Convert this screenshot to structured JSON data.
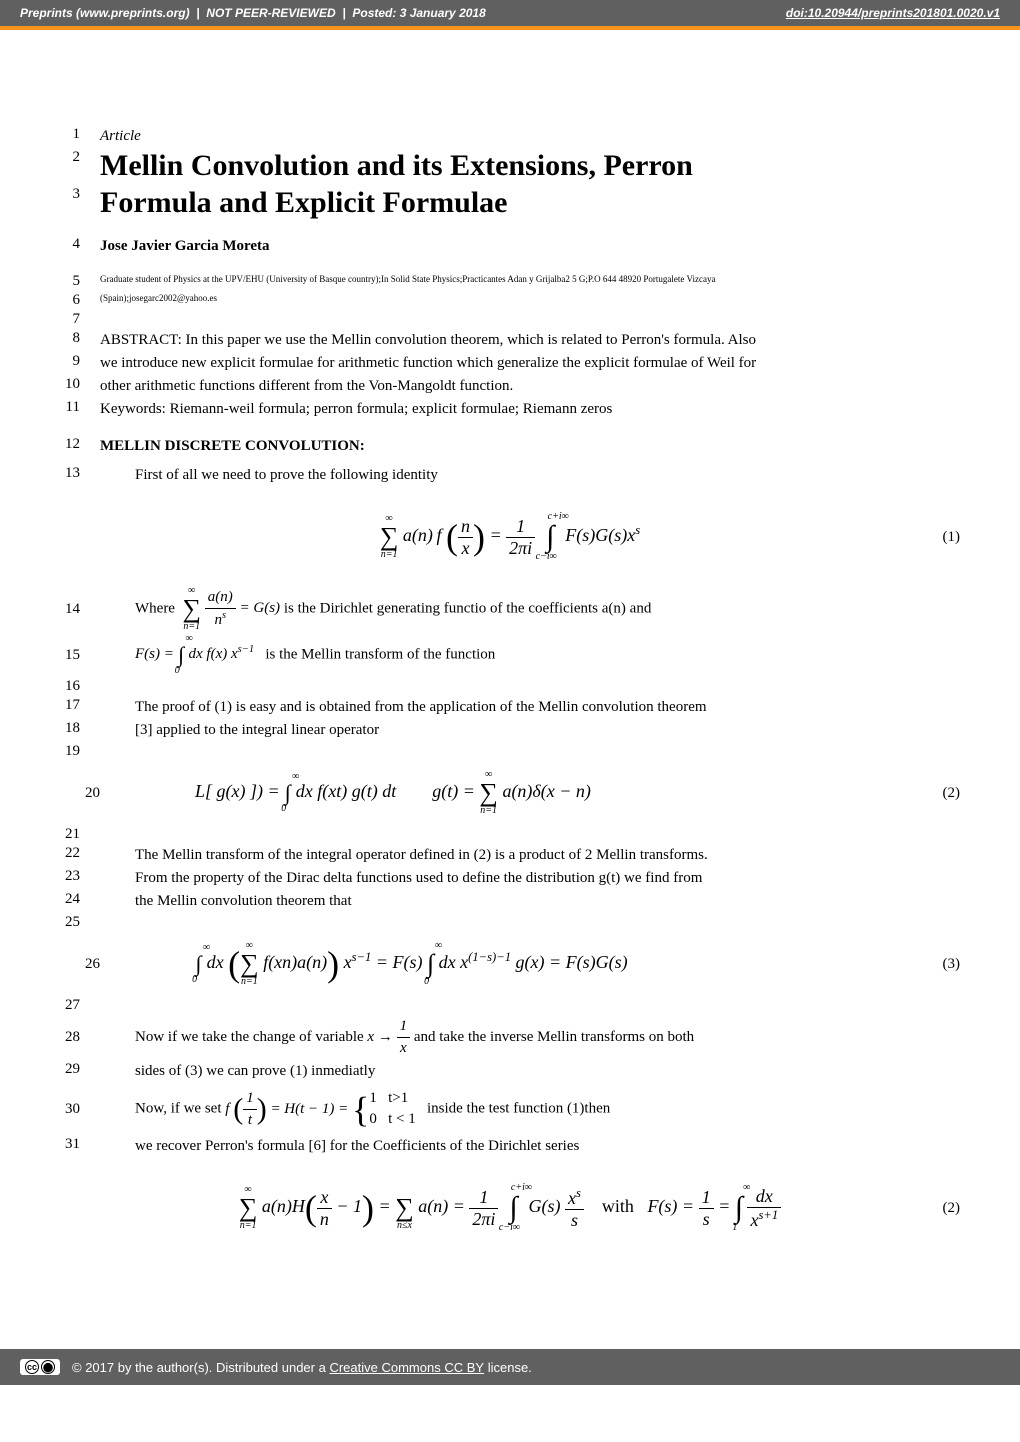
{
  "header": {
    "site": "Preprints",
    "url": "(www.preprints.org)",
    "separator": "|",
    "not_reviewed": "NOT PEER-REVIEWED",
    "posted": "Posted: 3 January 2018",
    "doi_label": "doi:10.20944/preprints201801.0020.v1"
  },
  "lines": {
    "l1": {
      "num": "1",
      "text": "Article"
    },
    "l2": {
      "num": "2",
      "text": "Mellin Convolution and its Extensions, Perron"
    },
    "l3": {
      "num": "3",
      "text": "Formula and Explicit Formulae"
    },
    "l4": {
      "num": "4",
      "text": "Jose Javier Garcia Moreta"
    },
    "l5": {
      "num": "5",
      "text": "Graduate student of Physics at the UPV/EHU (University of Basque country);In Solid State Physics;Practicantes Adan y Grijalba2 5 G;P.O 644 48920 Portugalete Vizcaya"
    },
    "l6": {
      "num": "6",
      "text": "(Spain);josegarc2002@yahoo.es"
    },
    "l7": {
      "num": "7",
      "text": ""
    },
    "l8": {
      "num": "8",
      "text": "ABSTRACT: In this paper we use the Mellin convolution theorem, which is related to Perron's formula. Also"
    },
    "l9": {
      "num": "9",
      "text": "we introduce new explicit formulae for arithmetic function which generalize the explicit formulae of Weil for"
    },
    "l10": {
      "num": "10",
      "text": "other arithmetic functions different from the Von-Mangoldt function."
    },
    "l11": {
      "num": "11",
      "text": "Keywords: Riemann-weil formula; perron formula; explicit formulae; Riemann zeros"
    },
    "l12": {
      "num": "12",
      "text": "MELLIN DISCRETE CONVOLUTION:"
    },
    "l13": {
      "num": "13",
      "text": "First of all we need to prove the following identity"
    },
    "l14": {
      "num": "14",
      "text_after": "is the Dirichlet generating functio of the coefficients a(n) and"
    },
    "l15": {
      "num": "15",
      "text_after": "is the Mellin transform of the function"
    },
    "l16": {
      "num": "16",
      "text": ""
    },
    "l17": {
      "num": "17",
      "text": "The proof of   (1) is easy and is obtained from the application of the Mellin convolution theorem"
    },
    "l18": {
      "num": "18",
      "text": "[3]   applied to the integral linear operator"
    },
    "l19": {
      "num": "19",
      "text": ""
    },
    "l20": {
      "num": "20"
    },
    "l21": {
      "num": "21",
      "text": ""
    },
    "l22": {
      "num": "22",
      "text": "The Mellin transform of the integral operator defined in (2) is a product of 2 Mellin transforms."
    },
    "l23": {
      "num": "23",
      "text": "From the property of the Dirac delta functions used to define the distribution g(t) we find from"
    },
    "l24": {
      "num": "24",
      "text": "the Mellin convolution theorem that"
    },
    "l25": {
      "num": "25",
      "text": ""
    },
    "l26": {
      "num": "26"
    },
    "l27": {
      "num": "27",
      "text": ""
    },
    "l28": {
      "num": "28",
      "text_before": "Now if we take the change of variable ",
      "text_after": " and take the inverse Mellin transforms on both"
    },
    "l29": {
      "num": "29",
      "text": "sides of (3) we can prove (1) inmediatly"
    },
    "l30": {
      "num": "30",
      "text_before": "Now, if we set",
      "text_after": "inside the test function (1)then"
    },
    "l31": {
      "num": "31",
      "text": "we recover Perron's formula [6] for the Coefficients of the Dirichlet series"
    }
  },
  "equations": {
    "eq1_num": "(1)",
    "eq2_num": "(2)",
    "eq3_num": "(3)",
    "eq4_num": "(2)",
    "where": "Where",
    "with": "with"
  },
  "footer": {
    "copyright": "© 2017 by the author(s). Distributed under a",
    "license_link": "Creative Commons CC BY",
    "license_suffix": "license."
  }
}
